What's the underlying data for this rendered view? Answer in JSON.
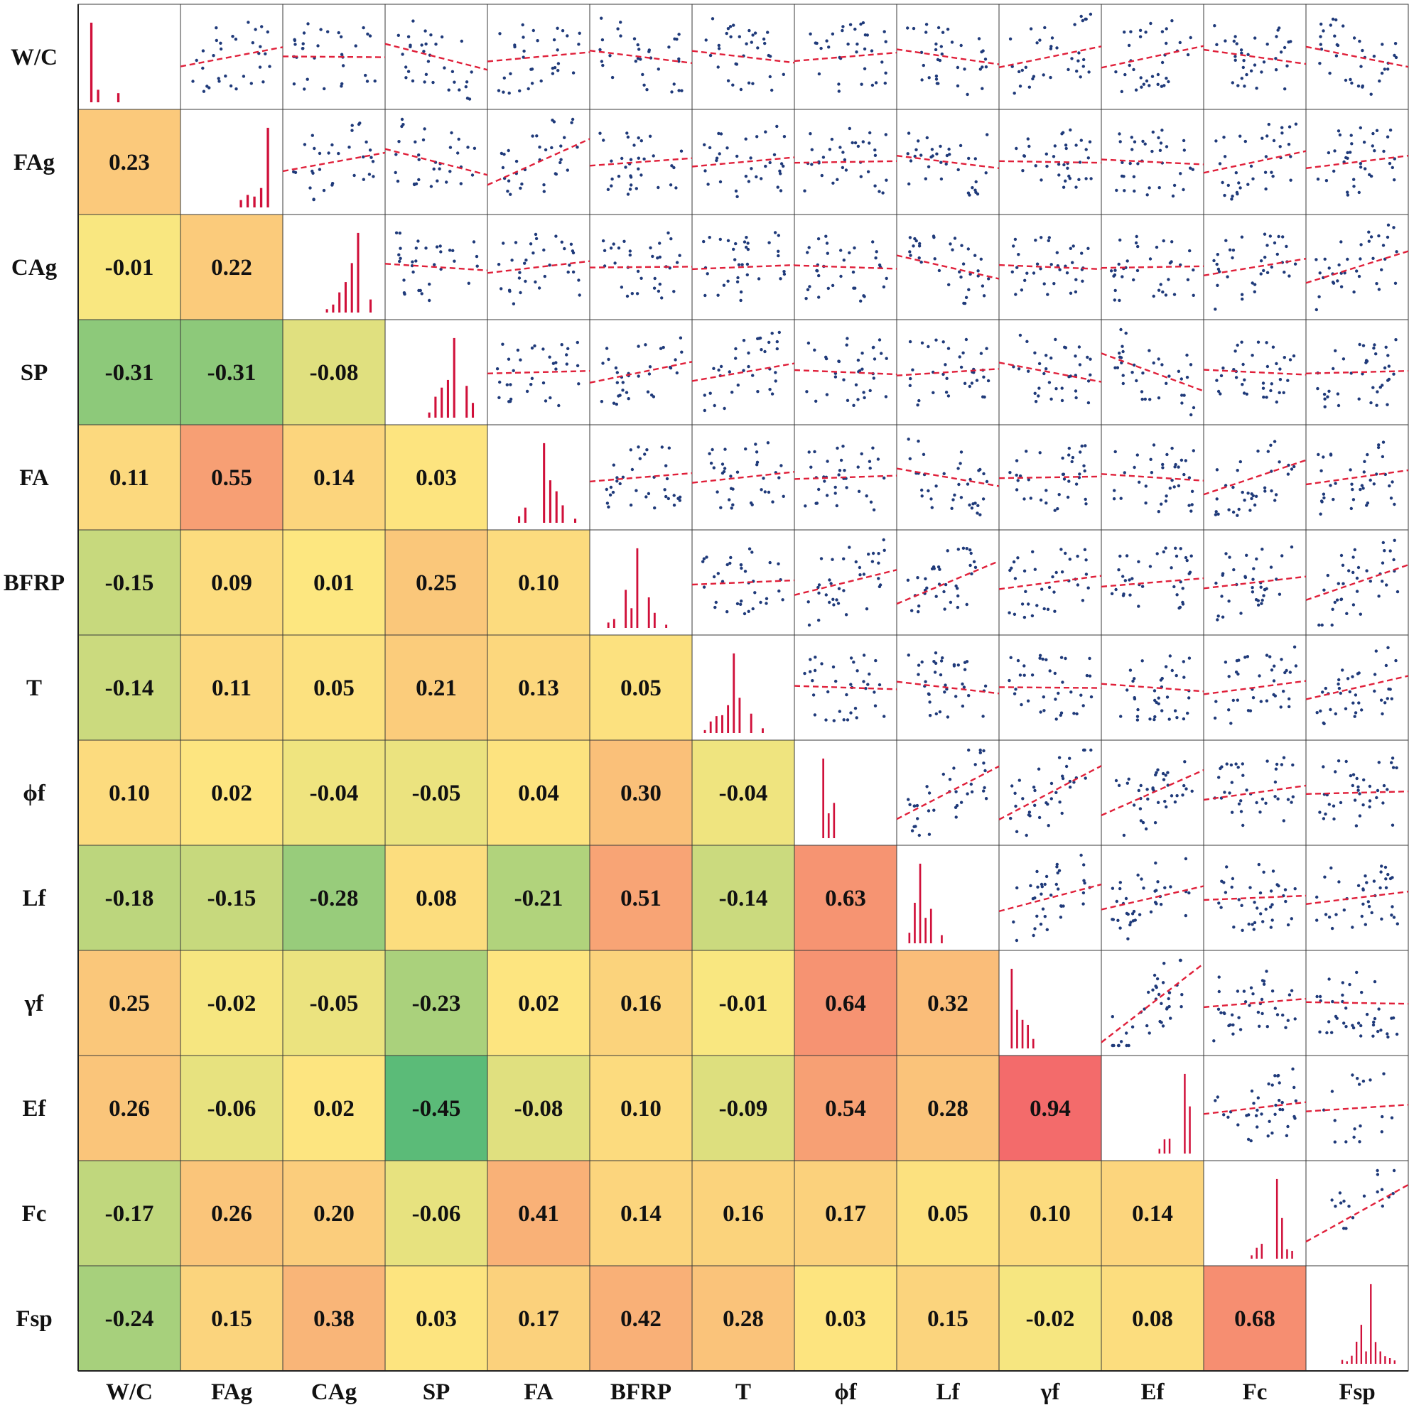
{
  "chart_data": {
    "type": "heatmap",
    "title": "",
    "variables": [
      "W/C",
      "FAg",
      "CAg",
      "SP",
      "FA",
      "BFRP",
      "T",
      "ϕf",
      "Lf",
      "γf",
      "Ef",
      "Fc",
      "Fsp"
    ],
    "correlation_lower": [
      [],
      [
        "0.23"
      ],
      [
        "-0.01",
        "0.22"
      ],
      [
        "-0.31",
        "-0.31",
        "-0.08"
      ],
      [
        "0.11",
        "0.55",
        "0.14",
        "0.03"
      ],
      [
        "-0.15",
        "0.09",
        "0.01",
        "0.25",
        "0.10"
      ],
      [
        "-0.14",
        "0.11",
        "0.05",
        "0.21",
        "0.13",
        "0.05"
      ],
      [
        "0.10",
        "0.02",
        "-0.04",
        "-0.05",
        "0.04",
        "0.30",
        "-0.04"
      ],
      [
        "-0.18",
        "-0.15",
        "-0.28",
        "0.08",
        "-0.21",
        "0.51",
        "-0.14",
        "0.63"
      ],
      [
        "0.25",
        "-0.02",
        "-0.05",
        "-0.23",
        "0.02",
        "0.16",
        "-0.01",
        "0.64",
        "0.32"
      ],
      [
        "0.26",
        "-0.06",
        "0.02",
        "-0.45",
        "-0.08",
        "0.10",
        "-0.09",
        "0.54",
        "0.28",
        "0.94"
      ],
      [
        "-0.17",
        "0.26",
        "0.20",
        "-0.06",
        "0.41",
        "0.14",
        "0.16",
        "0.17",
        "0.05",
        "0.10",
        "0.14"
      ],
      [
        "-0.24",
        "0.15",
        "0.38",
        "0.03",
        "0.17",
        "0.42",
        "0.28",
        "0.03",
        "0.15",
        "-0.02",
        "0.08",
        "0.68"
      ]
    ],
    "diagonal": "histogram",
    "upper": "scatter with dashed linear fit",
    "color_scale": {
      "negative": "#5bbb78",
      "zero": "#fde880",
      "positive": "#f36b6b"
    },
    "colors": {
      "histogram": "#d0103a",
      "points": "#1f3a7a",
      "fit_line": "#e0203a"
    },
    "grid": true
  }
}
